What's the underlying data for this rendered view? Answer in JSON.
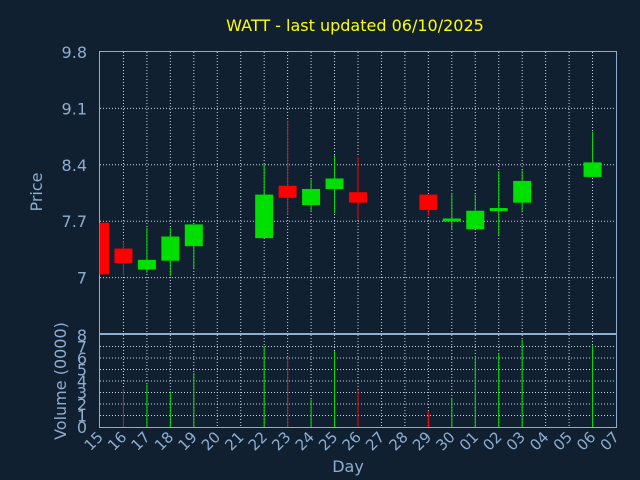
{
  "chart_data": {
    "type": "candlestick",
    "title": "WATT - last updated 06/10/2025",
    "xlabel": "Day",
    "ylabel": "Price",
    "volume_ylabel": "Volume (0000)",
    "grid": true,
    "x_ticks": [
      "15",
      "16",
      "17",
      "18",
      "19",
      "20",
      "21",
      "22",
      "23",
      "24",
      "25",
      "26",
      "27",
      "28",
      "29",
      "30",
      "01",
      "02",
      "03",
      "04",
      "05",
      "06",
      "07"
    ],
    "price_ylim": [
      6.3,
      9.8
    ],
    "price_yticks": [
      "9.8",
      "9.1",
      "8.4",
      "7.7",
      "7"
    ],
    "volume_ylim": [
      0,
      8
    ],
    "volume_yticks": [
      "8",
      "7",
      "6",
      "5",
      "4",
      "3",
      "2",
      "1",
      "0"
    ],
    "candles": [
      {
        "day": "15",
        "open": 7.68,
        "close": 7.04,
        "high": 7.68,
        "low": 7.04,
        "direction": "down"
      },
      {
        "day": "16",
        "open": 7.36,
        "close": 7.18,
        "high": 7.45,
        "low": 7.03,
        "direction": "down"
      },
      {
        "day": "17",
        "open": 7.1,
        "close": 7.22,
        "high": 7.62,
        "low": 7.06,
        "direction": "up"
      },
      {
        "day": "18",
        "open": 7.21,
        "close": 7.51,
        "high": 7.62,
        "low": 7.02,
        "direction": "up"
      },
      {
        "day": "19",
        "open": 7.39,
        "close": 7.66,
        "high": 7.66,
        "low": 7.12,
        "direction": "up"
      },
      {
        "day": "22",
        "open": 7.49,
        "close": 8.03,
        "high": 8.41,
        "low": 7.49,
        "direction": "up"
      },
      {
        "day": "23",
        "open": 8.14,
        "close": 7.99,
        "high": 8.95,
        "low": 7.78,
        "direction": "down"
      },
      {
        "day": "24",
        "open": 7.9,
        "close": 8.1,
        "high": 8.22,
        "low": 7.82,
        "direction": "up"
      },
      {
        "day": "25",
        "open": 8.1,
        "close": 8.23,
        "high": 8.52,
        "low": 7.8,
        "direction": "up"
      },
      {
        "day": "26",
        "open": 8.06,
        "close": 7.93,
        "high": 8.5,
        "low": 7.72,
        "direction": "down"
      },
      {
        "day": "29",
        "open": 8.03,
        "close": 7.84,
        "high": 8.03,
        "low": 7.77,
        "direction": "down"
      },
      {
        "day": "30",
        "open": 7.7,
        "close": 7.73,
        "high": 8.05,
        "low": 7.59,
        "direction": "up"
      },
      {
        "day": "01",
        "open": 7.6,
        "close": 7.83,
        "high": 8.03,
        "low": 7.6,
        "direction": "up"
      },
      {
        "day": "02",
        "open": 7.83,
        "close": 7.86,
        "high": 8.32,
        "low": 7.53,
        "direction": "up"
      },
      {
        "day": "03",
        "open": 7.93,
        "close": 8.2,
        "high": 8.33,
        "low": 7.83,
        "direction": "up"
      },
      {
        "day": "06",
        "open": 8.25,
        "close": 8.43,
        "high": 8.81,
        "low": 8.25,
        "direction": "up"
      }
    ],
    "volumes": [
      {
        "day": "15",
        "value": 0,
        "direction": "down"
      },
      {
        "day": "16",
        "value": 3.3,
        "direction": "down"
      },
      {
        "day": "17",
        "value": 3.7,
        "direction": "up"
      },
      {
        "day": "18",
        "value": 3.1,
        "direction": "up"
      },
      {
        "day": "19",
        "value": 4.7,
        "direction": "up"
      },
      {
        "day": "22",
        "value": 7.0,
        "direction": "up"
      },
      {
        "day": "23",
        "value": 6.1,
        "direction": "down"
      },
      {
        "day": "24",
        "value": 2.4,
        "direction": "up"
      },
      {
        "day": "25",
        "value": 6.6,
        "direction": "up"
      },
      {
        "day": "26",
        "value": 3.2,
        "direction": "down"
      },
      {
        "day": "29",
        "value": 1.4,
        "direction": "down"
      },
      {
        "day": "30",
        "value": 2.5,
        "direction": "up"
      },
      {
        "day": "01",
        "value": 6.0,
        "direction": "up"
      },
      {
        "day": "02",
        "value": 6.4,
        "direction": "up"
      },
      {
        "day": "03",
        "value": 7.6,
        "direction": "up"
      },
      {
        "day": "06",
        "value": 7.1,
        "direction": "up"
      }
    ],
    "colors": {
      "background": "#102030",
      "up": "#00e000",
      "down": "#ff0000",
      "title": "#ffff00",
      "axis_text": "#8eaed0",
      "grid": "#c8d8e8"
    }
  }
}
